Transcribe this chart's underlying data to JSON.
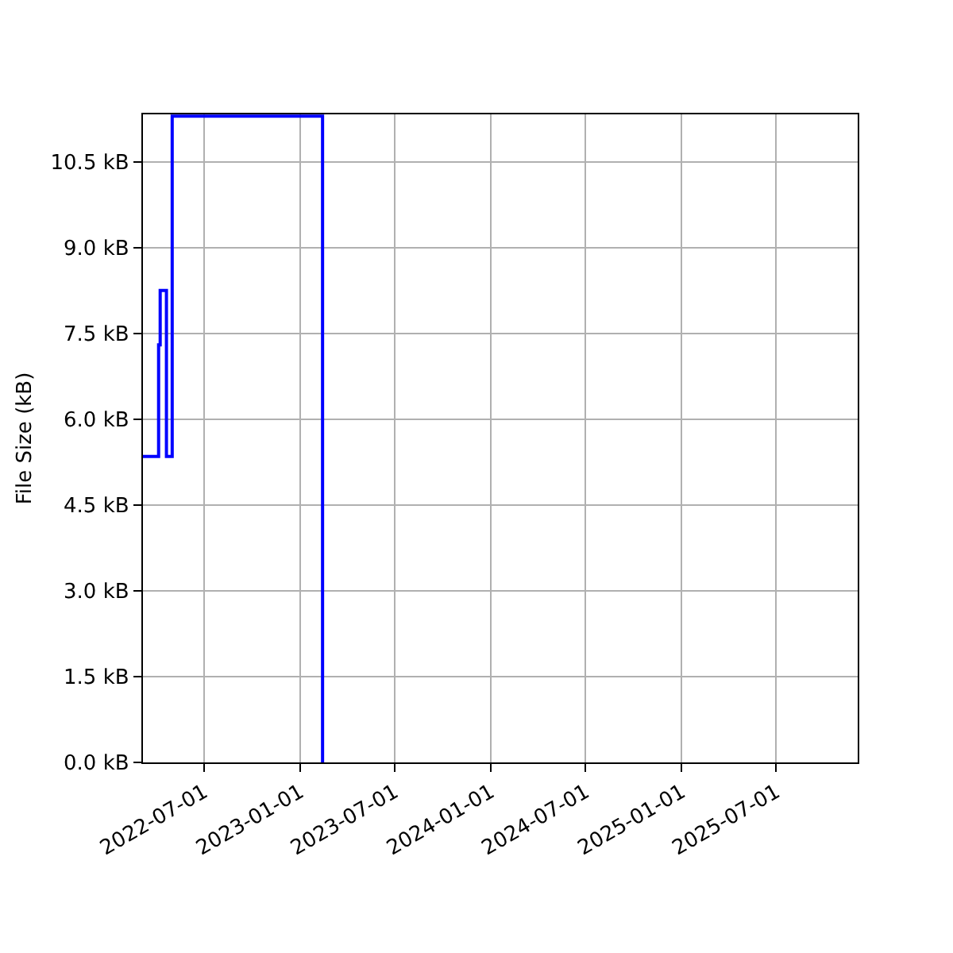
{
  "chart_data": {
    "type": "step",
    "ylabel": "File Size (kB)",
    "x": [
      "2022-03-06",
      "2022-04-05",
      "2022-04-08",
      "2022-04-20",
      "2022-05-01",
      "2023-02-13"
    ],
    "series": [
      {
        "color": "#0000ff",
        "values": [
          5.35,
          7.3,
          8.25,
          5.35,
          11.3,
          0
        ]
      }
    ],
    "xlim": [
      "2022-03-06",
      "2025-12-04"
    ],
    "xticks": [
      "2022-07-01",
      "2023-01-01",
      "2023-07-01",
      "2024-01-01",
      "2024-07-01",
      "2025-01-01",
      "2025-07-01"
    ],
    "ylim": [
      0,
      11.33
    ],
    "yticks": [
      {
        "value": 0,
        "label": "0.0 kB"
      },
      {
        "value": 1.5,
        "label": "1.5 kB"
      },
      {
        "value": 3,
        "label": "3.0 kB"
      },
      {
        "value": 4.5,
        "label": "4.5 kB"
      },
      {
        "value": 6,
        "label": "6.0 kB"
      },
      {
        "value": 7.5,
        "label": "7.5 kB"
      },
      {
        "value": 9,
        "label": "9.0 kB"
      },
      {
        "value": 10.5,
        "label": "10.5 kB"
      }
    ],
    "grid": true
  }
}
